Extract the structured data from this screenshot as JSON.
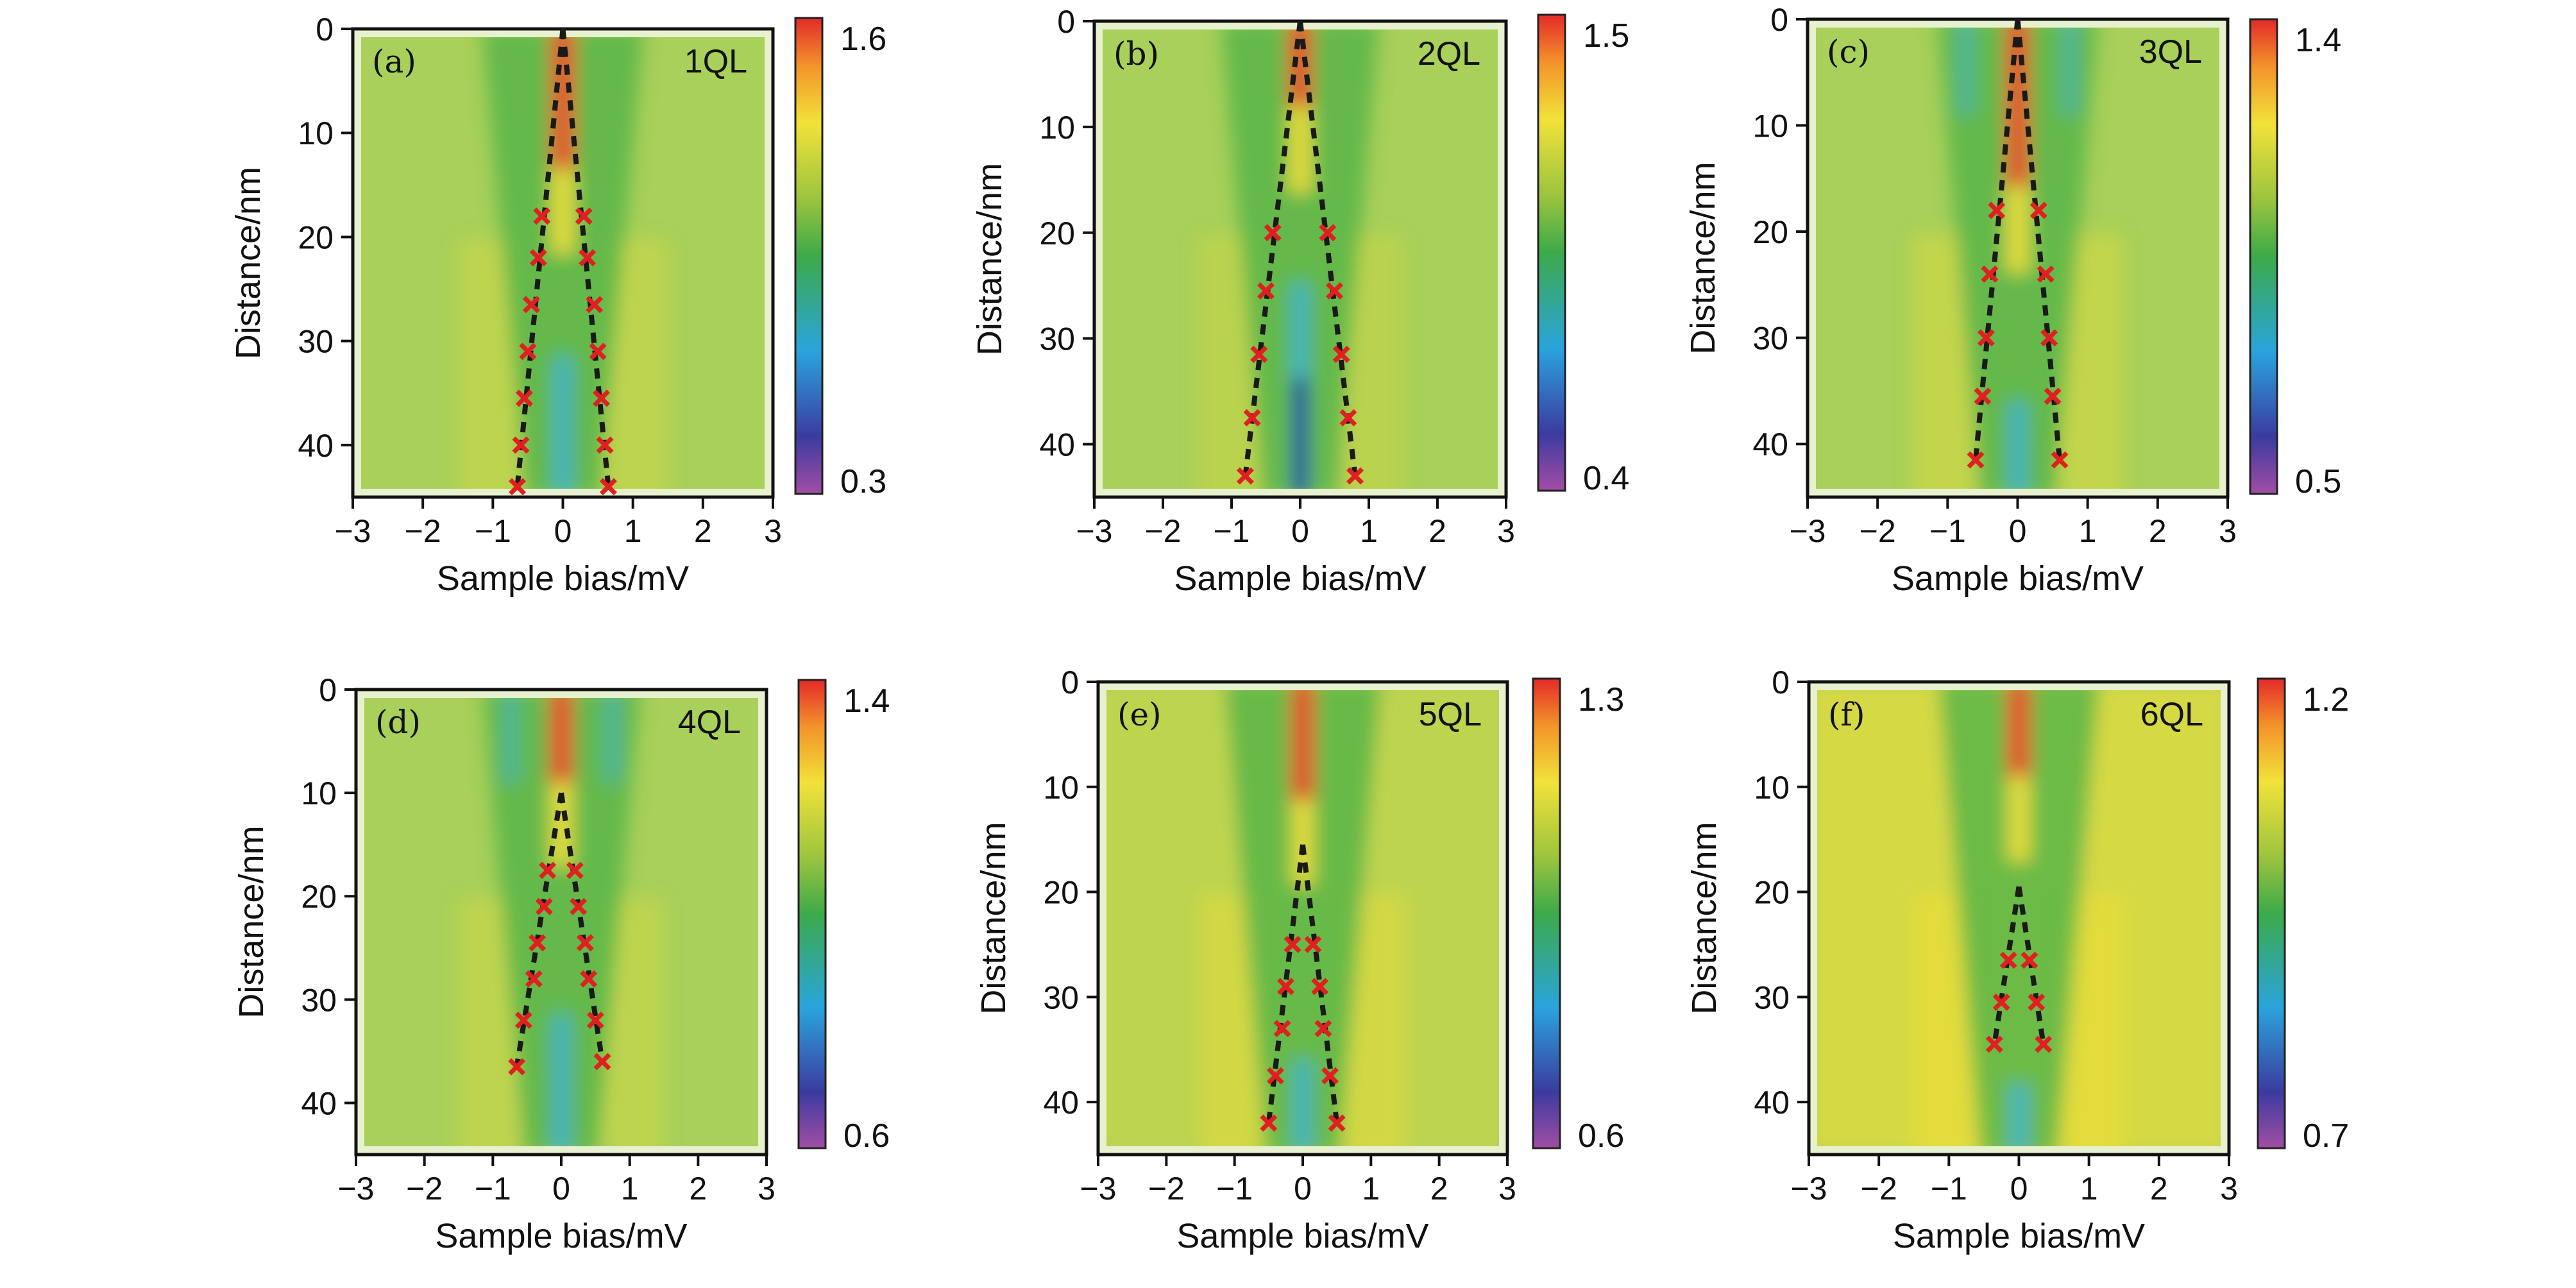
{
  "chart_data": [
    {
      "type": "heatmap",
      "panel_label": "(a)",
      "ql_label": "1QL",
      "xlabel": "Sample bias/mV",
      "ylabel": "Distance/nm",
      "xlim": [
        -3,
        3
      ],
      "ylim": [
        0,
        45
      ],
      "y_inverted": true,
      "xticks": [
        -3,
        -2,
        -1,
        0,
        1,
        2,
        3
      ],
      "yticks": [
        0,
        10,
        20,
        30,
        40
      ],
      "colorbar": {
        "min": 0.3,
        "max": 1.6
      },
      "markers_left": [
        {
          "x": -0.3,
          "y": 18
        },
        {
          "x": -0.35,
          "y": 22
        },
        {
          "x": -0.45,
          "y": 26.5
        },
        {
          "x": -0.5,
          "y": 31
        },
        {
          "x": -0.55,
          "y": 35.5
        },
        {
          "x": -0.6,
          "y": 40
        },
        {
          "x": -0.65,
          "y": 44
        }
      ],
      "markers_right": [
        {
          "x": 0.3,
          "y": 18
        },
        {
          "x": 0.35,
          "y": 22
        },
        {
          "x": 0.45,
          "y": 26.5
        },
        {
          "x": 0.5,
          "y": 31
        },
        {
          "x": 0.55,
          "y": 35.5
        },
        {
          "x": 0.6,
          "y": 40
        },
        {
          "x": 0.65,
          "y": 44
        }
      ],
      "line_apex": {
        "x": 0,
        "y": 0
      }
    },
    {
      "type": "heatmap",
      "panel_label": "(b)",
      "ql_label": "2QL",
      "xlabel": "Sample bias/mV",
      "ylabel": "Distance/nm",
      "xlim": [
        -3,
        3
      ],
      "ylim": [
        0,
        45
      ],
      "y_inverted": true,
      "xticks": [
        -3,
        -2,
        -1,
        0,
        1,
        2,
        3
      ],
      "yticks": [
        0,
        10,
        20,
        30,
        40
      ],
      "colorbar": {
        "min": 0.4,
        "max": 1.5
      },
      "markers_left": [
        {
          "x": -0.4,
          "y": 20
        },
        {
          "x": -0.5,
          "y": 25.5
        },
        {
          "x": -0.6,
          "y": 31.5
        },
        {
          "x": -0.7,
          "y": 37.5
        },
        {
          "x": -0.8,
          "y": 43
        }
      ],
      "markers_right": [
        {
          "x": 0.4,
          "y": 20
        },
        {
          "x": 0.5,
          "y": 25.5
        },
        {
          "x": 0.6,
          "y": 31.5
        },
        {
          "x": 0.7,
          "y": 37.5
        },
        {
          "x": 0.8,
          "y": 43
        }
      ],
      "line_apex": {
        "x": 0,
        "y": 0
      }
    },
    {
      "type": "heatmap",
      "panel_label": "(c)",
      "ql_label": "3QL",
      "xlabel": "Sample bias/mV",
      "ylabel": "Distance/nm",
      "xlim": [
        -3,
        3
      ],
      "ylim": [
        0,
        45
      ],
      "y_inverted": true,
      "xticks": [
        -3,
        -2,
        -1,
        0,
        1,
        2,
        3
      ],
      "yticks": [
        0,
        10,
        20,
        30,
        40
      ],
      "colorbar": {
        "min": 0.5,
        "max": 1.4
      },
      "markers_left": [
        {
          "x": -0.3,
          "y": 18
        },
        {
          "x": -0.4,
          "y": 24
        },
        {
          "x": -0.45,
          "y": 30
        },
        {
          "x": -0.5,
          "y": 35.5
        },
        {
          "x": -0.6,
          "y": 41.5
        }
      ],
      "markers_right": [
        {
          "x": 0.3,
          "y": 18
        },
        {
          "x": 0.4,
          "y": 24
        },
        {
          "x": 0.45,
          "y": 30
        },
        {
          "x": 0.5,
          "y": 35.5
        },
        {
          "x": 0.6,
          "y": 41.5
        }
      ],
      "line_apex": {
        "x": 0,
        "y": 0
      }
    },
    {
      "type": "heatmap",
      "panel_label": "(d)",
      "ql_label": "4QL",
      "xlabel": "Sample bias/mV",
      "ylabel": "Distance/nm",
      "xlim": [
        -3,
        3
      ],
      "ylim": [
        0,
        45
      ],
      "y_inverted": true,
      "xticks": [
        -3,
        -2,
        -1,
        0,
        1,
        2,
        3
      ],
      "yticks": [
        0,
        10,
        20,
        30,
        40
      ],
      "colorbar": {
        "min": 0.6,
        "max": 1.4
      },
      "markers_left": [
        {
          "x": -0.2,
          "y": 17.5
        },
        {
          "x": -0.25,
          "y": 21
        },
        {
          "x": -0.35,
          "y": 24.5
        },
        {
          "x": -0.4,
          "y": 28
        },
        {
          "x": -0.55,
          "y": 32
        },
        {
          "x": -0.65,
          "y": 36.5
        }
      ],
      "markers_right": [
        {
          "x": 0.2,
          "y": 17.5
        },
        {
          "x": 0.25,
          "y": 21
        },
        {
          "x": 0.35,
          "y": 24.5
        },
        {
          "x": 0.4,
          "y": 28
        },
        {
          "x": 0.5,
          "y": 32
        },
        {
          "x": 0.6,
          "y": 36
        }
      ],
      "line_apex": {
        "x": 0,
        "y": 10
      }
    },
    {
      "type": "heatmap",
      "panel_label": "(e)",
      "ql_label": "5QL",
      "xlabel": "Sample bias/mV",
      "ylabel": "Distance/nm",
      "xlim": [
        -3,
        3
      ],
      "ylim": [
        0,
        45
      ],
      "y_inverted": true,
      "xticks": [
        -3,
        -2,
        -1,
        0,
        1,
        2,
        3
      ],
      "yticks": [
        0,
        10,
        20,
        30,
        40
      ],
      "colorbar": {
        "min": 0.6,
        "max": 1.3
      },
      "markers_left": [
        {
          "x": -0.15,
          "y": 25
        },
        {
          "x": -0.25,
          "y": 29
        },
        {
          "x": -0.3,
          "y": 33
        },
        {
          "x": -0.4,
          "y": 37.5
        },
        {
          "x": -0.5,
          "y": 42
        }
      ],
      "markers_right": [
        {
          "x": 0.15,
          "y": 25
        },
        {
          "x": 0.25,
          "y": 29
        },
        {
          "x": 0.3,
          "y": 33
        },
        {
          "x": 0.4,
          "y": 37.5
        },
        {
          "x": 0.5,
          "y": 42
        }
      ],
      "line_apex": {
        "x": 0,
        "y": 15.5
      }
    },
    {
      "type": "heatmap",
      "panel_label": "(f)",
      "ql_label": "6QL",
      "xlabel": "Sample bias/mV",
      "ylabel": "Distance/nm",
      "xlim": [
        -3,
        3
      ],
      "ylim": [
        0,
        45
      ],
      "y_inverted": true,
      "xticks": [
        -3,
        -2,
        -1,
        0,
        1,
        2,
        3
      ],
      "yticks": [
        0,
        10,
        20,
        30,
        40
      ],
      "colorbar": {
        "min": 0.7,
        "max": 1.2
      },
      "markers_left": [
        {
          "x": -0.15,
          "y": 26.5
        },
        {
          "x": -0.25,
          "y": 30.5
        },
        {
          "x": -0.35,
          "y": 34.5
        }
      ],
      "markers_right": [
        {
          "x": 0.15,
          "y": 26.5
        },
        {
          "x": 0.25,
          "y": 30.5
        },
        {
          "x": 0.35,
          "y": 34.5
        }
      ],
      "line_apex": {
        "x": 0,
        "y": 19.5
      }
    }
  ],
  "colors": {
    "map_background": "#a8d05a",
    "map_green": "#58b548",
    "map_yellow": "#e4dc3c",
    "map_red": "#e84a2a",
    "map_blue": "#3ab3d9",
    "map_dark_blue": "#1f3d9a",
    "map_halo": "#e8f1cf",
    "marker": "#e02020",
    "guide_line": "#1a1a1a"
  }
}
